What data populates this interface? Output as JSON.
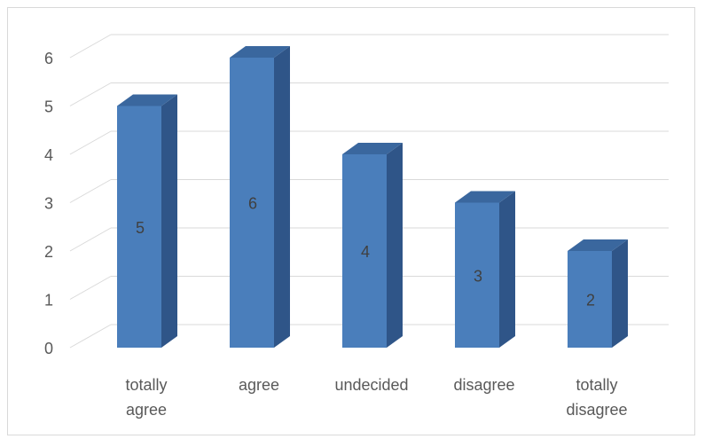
{
  "chart_data": {
    "type": "bar",
    "style": "3d-column",
    "categories": [
      [
        "totally",
        "agree"
      ],
      [
        "agree"
      ],
      [
        "undecided"
      ],
      [
        "disagree"
      ],
      [
        "totally",
        "disagree"
      ]
    ],
    "values": [
      5,
      6,
      4,
      3,
      2
    ],
    "data_labels": [
      "5",
      "6",
      "4",
      "3",
      "2"
    ],
    "y_ticks": [
      "0",
      "1",
      "2",
      "3",
      "4",
      "5",
      "6"
    ],
    "ylim": [
      0,
      6
    ],
    "grid": true,
    "legend": "none",
    "colors": {
      "bar_front": "#4a7ebb",
      "bar_side": "#2f5588",
      "bar_top": "#3a679e",
      "grid": "#d9d9d9",
      "text": "#595959"
    }
  }
}
